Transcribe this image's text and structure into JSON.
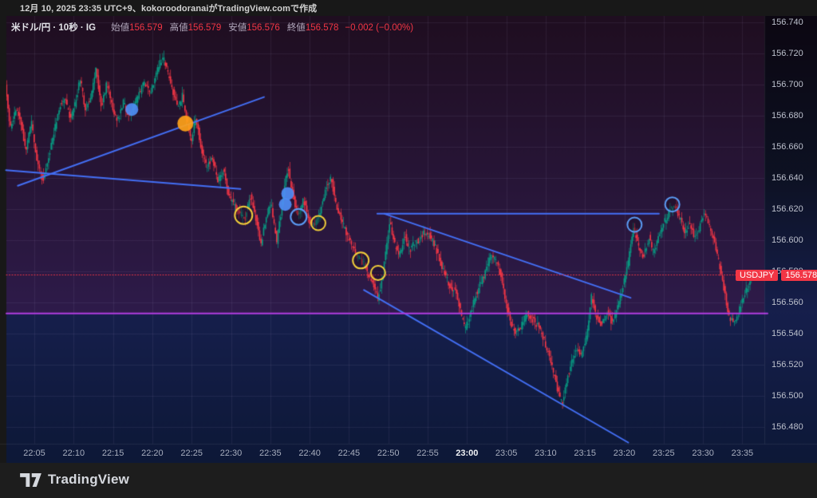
{
  "attribution": "12月 10, 2025 23:35 UTC+9、kokoroodoranaiがTradingView.comで作成",
  "watermark_brand": "TradingView",
  "legend": {
    "symbol": "米ドル/円 · 10秒 · IG",
    "open_label": "始値",
    "open": "156.579",
    "high_label": "高値",
    "high": "156.579",
    "low_label": "安値",
    "low": "156.576",
    "close_label": "終値",
    "close": "156.578",
    "change": "−0.002 (−0.00%)"
  },
  "price_tag": {
    "symbol": "USDJPY",
    "price": "156.578"
  },
  "colors": {
    "up": "#089981",
    "down": "#f23645",
    "trend_line": "#436ff5",
    "horizontal_line": "#b13ce0",
    "current_price_line": "#f23645",
    "tag_bg": "#f23645",
    "grid": "rgba(190,180,220,0.09)",
    "marker_blue": "#4f8ef5",
    "marker_orange": "#ffa219",
    "marker_yellow": "#f2cf3a"
  },
  "chart_data": {
    "type": "candlestick",
    "title": "米ドル/円 · 10秒 · IG",
    "symbol": "USD/JPY",
    "interval": "10秒",
    "exchange": "IG",
    "last_price": 156.578,
    "ohlc": {
      "open": 156.579,
      "high": 156.579,
      "low": 156.576,
      "close": 156.578,
      "change": -0.002,
      "change_pct": "-0.00%"
    },
    "ylim": [
      156.468,
      156.744
    ],
    "grid": true,
    "y_ticks": [
      156.74,
      156.72,
      156.7,
      156.68,
      156.66,
      156.64,
      156.62,
      156.6,
      156.58,
      156.56,
      156.54,
      156.52,
      156.5,
      156.48
    ],
    "x_ticks": [
      {
        "t": 5,
        "label": "22:05"
      },
      {
        "t": 10,
        "label": "22:10"
      },
      {
        "t": 15,
        "label": "22:15"
      },
      {
        "t": 20,
        "label": "22:20"
      },
      {
        "t": 25,
        "label": "22:25"
      },
      {
        "t": 30,
        "label": "22:30"
      },
      {
        "t": 35,
        "label": "22:35"
      },
      {
        "t": 40,
        "label": "22:40"
      },
      {
        "t": 45,
        "label": "22:45"
      },
      {
        "t": 50,
        "label": "22:50"
      },
      {
        "t": 55,
        "label": "22:55"
      },
      {
        "t": 60,
        "label": "23:00",
        "bold": true
      },
      {
        "t": 65,
        "label": "23:05"
      },
      {
        "t": 70,
        "label": "23:10"
      },
      {
        "t": 75,
        "label": "23:15"
      },
      {
        "t": 80,
        "label": "23:20"
      },
      {
        "t": 85,
        "label": "23:25"
      },
      {
        "t": 90,
        "label": "23:30"
      },
      {
        "t": 95,
        "label": "23:35"
      }
    ],
    "candle_interval_sec": 10,
    "visible_range_min": [
      1.4,
      96.4
    ],
    "price_path": [
      [
        1.4,
        156.7
      ],
      [
        2.0,
        156.672
      ],
      [
        2.7,
        156.683
      ],
      [
        3.3,
        156.679
      ],
      [
        4.0,
        156.657
      ],
      [
        4.7,
        156.676
      ],
      [
        5.4,
        156.651
      ],
      [
        6.2,
        156.638
      ],
      [
        6.9,
        156.654
      ],
      [
        7.5,
        156.668
      ],
      [
        8.2,
        156.684
      ],
      [
        8.9,
        156.692
      ],
      [
        9.7,
        156.678
      ],
      [
        10.4,
        156.69
      ],
      [
        10.9,
        156.704
      ],
      [
        11.6,
        156.683
      ],
      [
        12.4,
        156.695
      ],
      [
        12.9,
        156.71
      ],
      [
        13.6,
        156.686
      ],
      [
        14.3,
        156.701
      ],
      [
        15.1,
        156.684
      ],
      [
        15.7,
        156.677
      ],
      [
        16.4,
        156.689
      ],
      [
        17.1,
        156.68
      ],
      [
        17.7,
        156.686
      ],
      [
        18.4,
        156.694
      ],
      [
        19.1,
        156.702
      ],
      [
        19.8,
        156.695
      ],
      [
        20.4,
        156.704
      ],
      [
        21.0,
        156.714
      ],
      [
        21.5,
        156.717
      ],
      [
        22.1,
        156.706
      ],
      [
        22.8,
        156.694
      ],
      [
        23.4,
        156.686
      ],
      [
        23.9,
        156.693
      ],
      [
        24.4,
        156.679
      ],
      [
        25.0,
        156.663
      ],
      [
        25.6,
        156.68
      ],
      [
        26.3,
        156.659
      ],
      [
        27.0,
        156.647
      ],
      [
        27.7,
        156.654
      ],
      [
        28.4,
        156.638
      ],
      [
        29.1,
        156.645
      ],
      [
        29.8,
        156.629
      ],
      [
        30.5,
        156.622
      ],
      [
        31.2,
        156.617
      ],
      [
        31.9,
        156.614
      ],
      [
        32.5,
        156.629
      ],
      [
        33.2,
        156.615
      ],
      [
        33.9,
        156.598
      ],
      [
        34.6,
        156.617
      ],
      [
        35.2,
        156.622
      ],
      [
        35.9,
        156.599
      ],
      [
        36.6,
        156.624
      ],
      [
        37.3,
        156.647
      ],
      [
        38.0,
        156.628
      ],
      [
        38.6,
        156.614
      ],
      [
        39.3,
        156.626
      ],
      [
        40.0,
        156.612
      ],
      [
        40.7,
        156.609
      ],
      [
        41.4,
        156.618
      ],
      [
        42.1,
        156.633
      ],
      [
        42.8,
        156.64
      ],
      [
        43.5,
        156.622
      ],
      [
        44.2,
        156.612
      ],
      [
        44.9,
        156.602
      ],
      [
        45.6,
        156.594
      ],
      [
        46.2,
        156.59
      ],
      [
        46.9,
        156.585
      ],
      [
        47.6,
        156.577
      ],
      [
        48.2,
        156.572
      ],
      [
        48.7,
        156.562
      ],
      [
        49.3,
        156.575
      ],
      [
        49.9,
        156.598
      ],
      [
        50.3,
        156.612
      ],
      [
        50.9,
        156.597
      ],
      [
        51.5,
        156.59
      ],
      [
        52.2,
        156.603
      ],
      [
        52.8,
        156.593
      ],
      [
        53.4,
        156.599
      ],
      [
        54.0,
        156.6
      ],
      [
        54.6,
        156.605
      ],
      [
        55.3,
        156.603
      ],
      [
        56.0,
        156.597
      ],
      [
        56.7,
        156.585
      ],
      [
        57.4,
        156.576
      ],
      [
        58.0,
        156.57
      ],
      [
        58.6,
        156.567
      ],
      [
        59.2,
        156.556
      ],
      [
        59.8,
        156.543
      ],
      [
        60.4,
        156.549
      ],
      [
        61.0,
        156.562
      ],
      [
        61.7,
        156.571
      ],
      [
        62.4,
        156.579
      ],
      [
        63.0,
        156.59
      ],
      [
        63.7,
        156.588
      ],
      [
        64.4,
        156.577
      ],
      [
        65.0,
        156.56
      ],
      [
        65.7,
        156.546
      ],
      [
        66.3,
        156.541
      ],
      [
        67.0,
        156.545
      ],
      [
        67.7,
        156.553
      ],
      [
        68.4,
        156.549
      ],
      [
        69.1,
        156.545
      ],
      [
        69.8,
        156.537
      ],
      [
        70.5,
        156.526
      ],
      [
        71.2,
        156.512
      ],
      [
        71.8,
        156.5
      ],
      [
        72.2,
        156.496
      ],
      [
        72.8,
        156.511
      ],
      [
        73.4,
        156.522
      ],
      [
        74.0,
        156.531
      ],
      [
        74.6,
        156.526
      ],
      [
        75.3,
        156.539
      ],
      [
        75.9,
        156.564
      ],
      [
        76.5,
        156.551
      ],
      [
        77.2,
        156.545
      ],
      [
        77.9,
        156.554
      ],
      [
        78.5,
        156.547
      ],
      [
        79.2,
        156.556
      ],
      [
        79.9,
        156.57
      ],
      [
        80.5,
        156.583
      ],
      [
        81.2,
        156.608
      ],
      [
        81.8,
        156.598
      ],
      [
        82.5,
        156.589
      ],
      [
        83.2,
        156.602
      ],
      [
        83.8,
        156.592
      ],
      [
        84.5,
        156.603
      ],
      [
        85.2,
        156.612
      ],
      [
        85.9,
        156.619
      ],
      [
        86.5,
        156.623
      ],
      [
        87.2,
        156.613
      ],
      [
        87.8,
        156.604
      ],
      [
        88.4,
        156.611
      ],
      [
        89.0,
        156.601
      ],
      [
        89.6,
        156.608
      ],
      [
        90.2,
        156.618
      ],
      [
        90.8,
        156.611
      ],
      [
        91.4,
        156.601
      ],
      [
        92.0,
        156.588
      ],
      [
        92.7,
        156.57
      ],
      [
        93.3,
        156.552
      ],
      [
        93.9,
        156.547
      ],
      [
        94.5,
        156.552
      ],
      [
        95.1,
        156.561
      ],
      [
        95.7,
        156.57
      ],
      [
        96.4,
        156.577
      ]
    ],
    "trend_lines": [
      {
        "from": [
          2.9,
          156.635
        ],
        "to": [
          34.2,
          156.692
        ]
      },
      {
        "from": [
          1.4,
          156.645
        ],
        "to": [
          31.2,
          156.633
        ]
      },
      {
        "from": [
          48.6,
          156.617
        ],
        "to": [
          84.4,
          156.617
        ]
      },
      {
        "from": [
          49.5,
          156.617
        ],
        "to": [
          80.8,
          156.563
        ]
      },
      {
        "from": [
          46.9,
          156.568
        ],
        "to": [
          80.5,
          156.47
        ]
      }
    ],
    "horizontal_line_price": 156.553,
    "current_price_line_price": 156.578,
    "highlight_zone": {
      "above_price": 156.553,
      "top_color": "#1f0e20",
      "bottom_color": "#2e1b4a"
    },
    "markers": [
      {
        "t": 17.4,
        "p": 156.684,
        "style": "filled",
        "color": "#4f8ef5",
        "r": 8
      },
      {
        "t": 24.2,
        "p": 156.675,
        "style": "filled",
        "color": "#ffa219",
        "r": 10
      },
      {
        "t": 31.6,
        "p": 156.616,
        "style": "ring",
        "color": "#f2cf3a",
        "r": 11
      },
      {
        "t": 36.9,
        "p": 156.623,
        "style": "filled",
        "color": "#4f8ef5",
        "r": 8
      },
      {
        "t": 37.2,
        "p": 156.63,
        "style": "filled",
        "color": "#4f8ef5",
        "r": 8
      },
      {
        "t": 38.6,
        "p": 156.615,
        "style": "ring",
        "color": "#5b9cf6",
        "r": 10
      },
      {
        "t": 41.1,
        "p": 156.611,
        "style": "ring",
        "color": "#f2cf3a",
        "r": 9
      },
      {
        "t": 46.5,
        "p": 156.587,
        "style": "ring",
        "color": "#f2cf3a",
        "r": 10
      },
      {
        "t": 48.7,
        "p": 156.579,
        "style": "ring",
        "color": "#f2cf3a",
        "r": 9
      },
      {
        "t": 81.3,
        "p": 156.61,
        "style": "ring",
        "color": "#5b9cf6",
        "r": 9
      },
      {
        "t": 86.1,
        "p": 156.623,
        "style": "ring",
        "color": "#5b9cf6",
        "r": 9
      }
    ]
  }
}
